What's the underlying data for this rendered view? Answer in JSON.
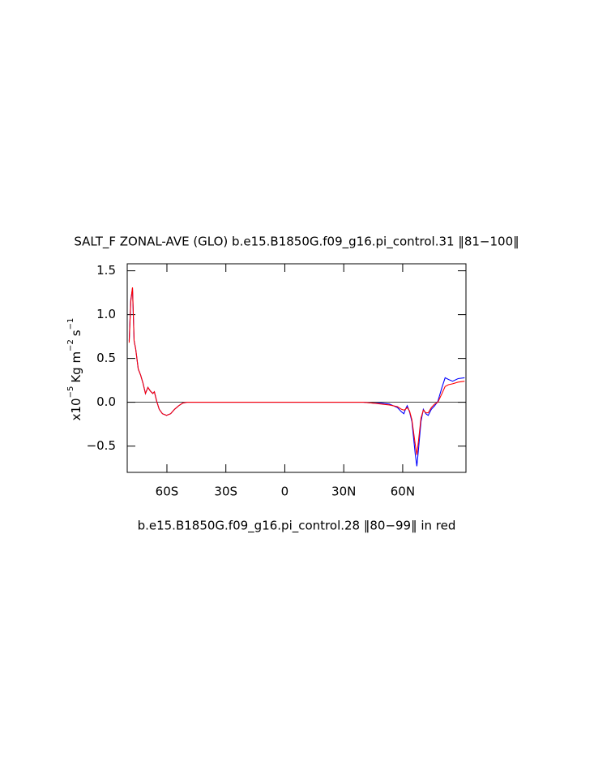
{
  "chart_data": {
    "type": "line",
    "title": "SALT_F ZONAL-AVE (GLO) b.e15.B1850G.f09_g16.pi_control.31 ‖81−100‖",
    "subtitle": "b.e15.B1850G.f09_g16.pi_control.28 ‖80−99‖ in red",
    "y_label_parts": [
      "x10",
      "−5",
      "Kg m",
      "−2",
      "s",
      "−1"
    ],
    "x": [
      -79.2,
      -78.4,
      -77.5,
      -76.7,
      -75.9,
      -74.6,
      -73.4,
      -72.2,
      -70.9,
      -69.7,
      -68.5,
      -67.2,
      -66.4,
      -65.2,
      -63.9,
      -62.3,
      -60.2,
      -58.1,
      -56.1,
      -54.0,
      -52.0,
      -49.9,
      -40,
      0,
      40,
      45,
      49.1,
      53.2,
      57.3,
      59.4,
      60.6,
      61.4,
      62.3,
      63.5,
      64.7,
      66.4,
      67.2,
      68.0,
      69.3,
      70.5,
      71.8,
      73.0,
      74.6,
      76.3,
      77.9,
      80.0,
      81.6,
      83.3,
      85.4,
      88.2,
      91.5
    ],
    "series": [
      {
        "color": "#0000ff",
        "values": [
          0.7,
          1.17,
          1.3,
          0.7,
          0.61,
          0.38,
          0.31,
          0.22,
          0.1,
          0.17,
          0.13,
          0.1,
          0.12,
          0.01,
          -0.08,
          -0.13,
          -0.15,
          -0.13,
          -0.08,
          -0.04,
          -0.01,
          0,
          0,
          0,
          0,
          -0.01,
          -0.01,
          -0.02,
          -0.06,
          -0.11,
          -0.13,
          -0.08,
          -0.04,
          -0.11,
          -0.22,
          -0.59,
          -0.73,
          -0.55,
          -0.22,
          -0.08,
          -0.13,
          -0.15,
          -0.08,
          -0.04,
          0.01,
          0.17,
          0.28,
          0.26,
          0.24,
          0.27,
          0.28
        ]
      },
      {
        "color": "#ff0000",
        "values": [
          0.68,
          1.15,
          1.31,
          0.7,
          0.61,
          0.38,
          0.31,
          0.22,
          0.1,
          0.17,
          0.13,
          0.1,
          0.12,
          0.01,
          -0.08,
          -0.13,
          -0.15,
          -0.13,
          -0.08,
          -0.04,
          -0.01,
          0,
          0,
          0,
          0,
          -0.01,
          -0.02,
          -0.03,
          -0.05,
          -0.08,
          -0.09,
          -0.08,
          -0.06,
          -0.1,
          -0.2,
          -0.48,
          -0.6,
          -0.45,
          -0.18,
          -0.09,
          -0.12,
          -0.12,
          -0.06,
          -0.02,
          0.0,
          0.1,
          0.18,
          0.2,
          0.21,
          0.23,
          0.24
        ]
      }
    ],
    "xlim": [
      -80.2,
      92.2
    ],
    "ylim": [
      -0.8,
      1.58
    ],
    "xticks": [
      {
        "value": -60,
        "label": "60S"
      },
      {
        "value": -30,
        "label": "30S"
      },
      0,
      {
        "value": 30,
        "label": "30N"
      },
      {
        "value": 60,
        "label": "60N"
      }
    ],
    "yticks": [
      {
        "value": -0.5,
        "label": "−0.5"
      },
      {
        "value": 0,
        "label": "0.0"
      },
      0.5,
      {
        "value": 1,
        "label": "1.0"
      },
      1.5
    ],
    "zero_line": true
  }
}
